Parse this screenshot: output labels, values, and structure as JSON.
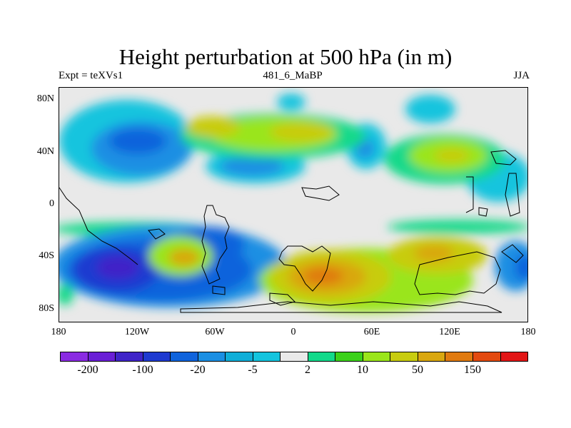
{
  "title": "Height perturbation at 500 hPa (in m)",
  "subtitle_left": "Expt = teXVs1",
  "subtitle_center": "481_6_MaBP",
  "subtitle_right": "JJA",
  "map": {
    "lat_labels": [
      "80N",
      "40N",
      "0",
      "40S",
      "80S"
    ],
    "lon_labels": [
      "180",
      "120W",
      "60W",
      "0",
      "60E",
      "120E",
      "180"
    ]
  },
  "colorbar": {
    "colors": [
      "#8a2be2",
      "#6a1fd6",
      "#3f24c8",
      "#1e3ad0",
      "#0f63dc",
      "#1b8fe3",
      "#10aed8",
      "#14c4de",
      "#e9e9e9",
      "#12d98a",
      "#3bd11a",
      "#9ae51a",
      "#c8cc10",
      "#d9a710",
      "#e07a10",
      "#e34a10",
      "#e21616"
    ],
    "labels": [
      "-200",
      "-100",
      "-20",
      "-5",
      "2",
      "10",
      "50",
      "150"
    ]
  }
}
